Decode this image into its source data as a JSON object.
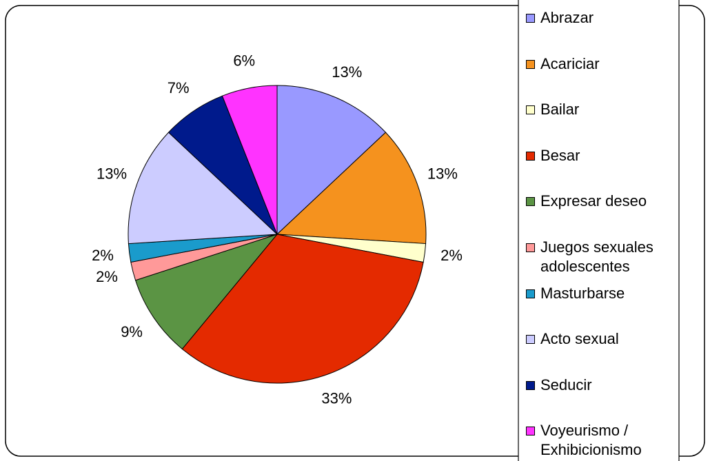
{
  "chart_data": {
    "type": "pie",
    "categories": [
      "Abrazar",
      "Acariciar",
      "Bailar",
      "Besar",
      "Expresar deseo",
      "Juegos sexuales adolescentes",
      "Masturbarse",
      "Acto sexual",
      "Seducir",
      "Voyeurismo / Exhibicionismo"
    ],
    "values": [
      13,
      13,
      2,
      33,
      9,
      2,
      2,
      13,
      7,
      6
    ],
    "value_labels": [
      "13%",
      "13%",
      "2%",
      "33%",
      "9%",
      "2%",
      "2%",
      "13%",
      "7%",
      "6%"
    ],
    "colors": [
      "#9999ff",
      "#f5921e",
      "#ffffcc",
      "#e42a00",
      "#5b9444",
      "#ff9999",
      "#1a9bcc",
      "#ccccff",
      "#001a8c",
      "#ff33ff"
    ]
  }
}
